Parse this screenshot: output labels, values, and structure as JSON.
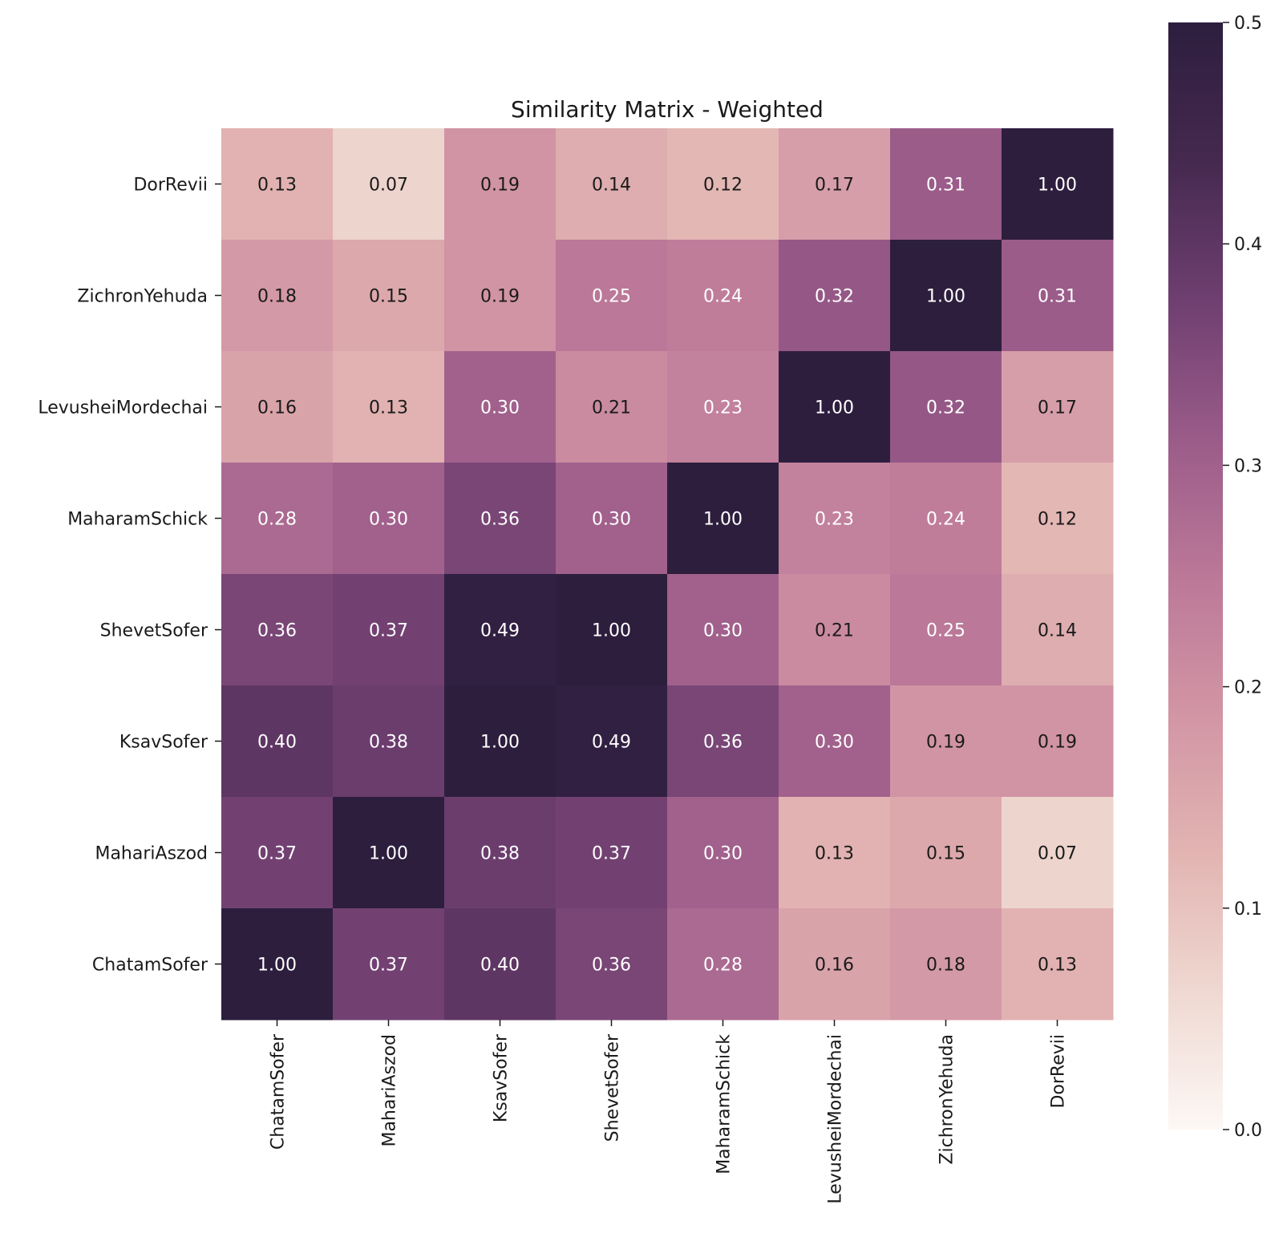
{
  "chart_data": {
    "type": "heatmap",
    "title": "Similarity Matrix - Weighted",
    "xlabel": "",
    "ylabel": "",
    "x_categories": [
      "ChatamSofer",
      "MahariAszod",
      "KsavSofer",
      "ShevetSofer",
      "MaharamSchick",
      "LevusheiMordechai",
      "ZichronYehuda",
      "DorRevii"
    ],
    "y_categories_top_to_bottom": [
      "DorRevii",
      "ZichronYehuda",
      "LevusheiMordechai",
      "MaharamSchick",
      "ShevetSofer",
      "KsavSofer",
      "MahariAszod",
      "ChatamSofer"
    ],
    "values_top_to_bottom": [
      [
        0.13,
        0.07,
        0.19,
        0.14,
        0.12,
        0.17,
        0.31,
        1.0
      ],
      [
        0.18,
        0.15,
        0.19,
        0.25,
        0.24,
        0.32,
        1.0,
        0.31
      ],
      [
        0.16,
        0.13,
        0.3,
        0.21,
        0.23,
        1.0,
        0.32,
        0.17
      ],
      [
        0.28,
        0.3,
        0.36,
        0.3,
        1.0,
        0.23,
        0.24,
        0.12
      ],
      [
        0.36,
        0.37,
        0.49,
        1.0,
        0.3,
        0.21,
        0.25,
        0.14
      ],
      [
        0.4,
        0.38,
        1.0,
        0.49,
        0.36,
        0.3,
        0.19,
        0.19
      ],
      [
        0.37,
        1.0,
        0.38,
        0.37,
        0.3,
        0.13,
        0.15,
        0.07
      ],
      [
        1.0,
        0.37,
        0.4,
        0.36,
        0.28,
        0.16,
        0.18,
        0.13
      ]
    ],
    "value_format": "0.00",
    "colorbar": {
      "vmin": 0.0,
      "vmax": 0.5,
      "ticks": [
        0.0,
        0.1,
        0.2,
        0.3,
        0.4,
        0.5
      ],
      "tick_labels": [
        "0.0",
        "0.1",
        "0.2",
        "0.3",
        "0.4",
        "0.5"
      ],
      "colormap_stops": [
        "#fdf8f5",
        "#efd8d1",
        "#e2b4b2",
        "#d295a4",
        "#bb7898",
        "#9a5b89",
        "#6e3f70",
        "#45294f",
        "#2d1e3e"
      ]
    },
    "grid": false
  }
}
